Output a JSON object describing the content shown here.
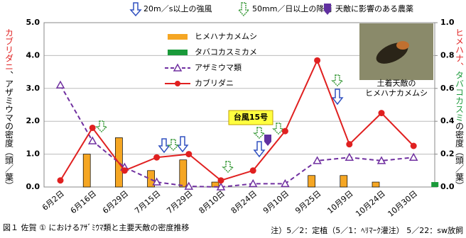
{
  "chart_data": {
    "type": "combo",
    "events_legend": [
      "20m／s以上の強風",
      "50mm／日以上の降雨",
      "天敵に影響のある農薬"
    ],
    "ylabel": [
      "カブリダニ",
      "、アザミウマの密度（頭／葉）"
    ],
    "y2label": [
      "ヒメハナ、",
      "タバコカスミ",
      "の密度（頭／葉）"
    ],
    "annotation": "台風15号",
    "photo_caption": [
      "土着天敵の",
      "ヒメハナカメムシ"
    ],
    "caption": "図１ 佐賀 ① におけるｱｻﾞﾐｳﾏ類と主要天敵の密度推移",
    "note": "注）5／2：定植（5／1：ﾍﾘﾏｰｸ灌注） 5／22：sw放飼",
    "categories": [
      "6月2日",
      "6月16日",
      "6月29日",
      "7月15日",
      "7月29日",
      "8月10日",
      "8月24日",
      "9月10日",
      "9月25日",
      "10月9日",
      "10月24日",
      "10月30日"
    ],
    "series": [
      {
        "name": "ヒメハナカメムシ",
        "type": "bar",
        "axis": "y2",
        "color": "#f5a623",
        "values": [
          null,
          0.2,
          0.3,
          0.1,
          0.165,
          0.03,
          null,
          null,
          0.07,
          0.07,
          0.03,
          null
        ]
      },
      {
        "name": "タバコカスミカメ",
        "type": "bar",
        "axis": "y2",
        "color": "#1a9a3a",
        "values": [
          null,
          null,
          null,
          null,
          null,
          null,
          null,
          null,
          null,
          null,
          null,
          0.03
        ]
      },
      {
        "name": "アザミウマ類",
        "type": "line",
        "dashed": true,
        "marker": "triangle",
        "color": "#7030a0",
        "values": [
          3.1,
          1.4,
          0.6,
          0.15,
          0.02,
          0.0,
          0.1,
          0.1,
          0.8,
          0.9,
          0.8,
          0.9
        ]
      },
      {
        "name": "カブリダニ",
        "type": "line",
        "dashed": false,
        "marker": "circle",
        "color": "#e02020",
        "values": [
          0.2,
          1.8,
          0.5,
          0.9,
          1.0,
          0.2,
          0.5,
          1.7,
          3.85,
          1.3,
          2.25,
          1.25
        ]
      }
    ],
    "ylim": [
      0,
      5
    ],
    "yticks": [
      {
        "value": 0,
        "label": "0.0"
      },
      {
        "value": 1,
        "label": "1.0"
      },
      {
        "value": 2,
        "label": "2.0"
      },
      {
        "value": 3,
        "label": "3.0"
      },
      {
        "value": 4,
        "label": "4.0"
      },
      {
        "value": 5,
        "label": "5.0"
      }
    ],
    "y2lim": [
      0,
      1
    ],
    "y2ticks": [
      {
        "value": 0,
        "label": "0.0"
      },
      0.2,
      0.4,
      0.6,
      0.8,
      {
        "value": 1,
        "label": "1.0"
      }
    ],
    "grid": true
  }
}
